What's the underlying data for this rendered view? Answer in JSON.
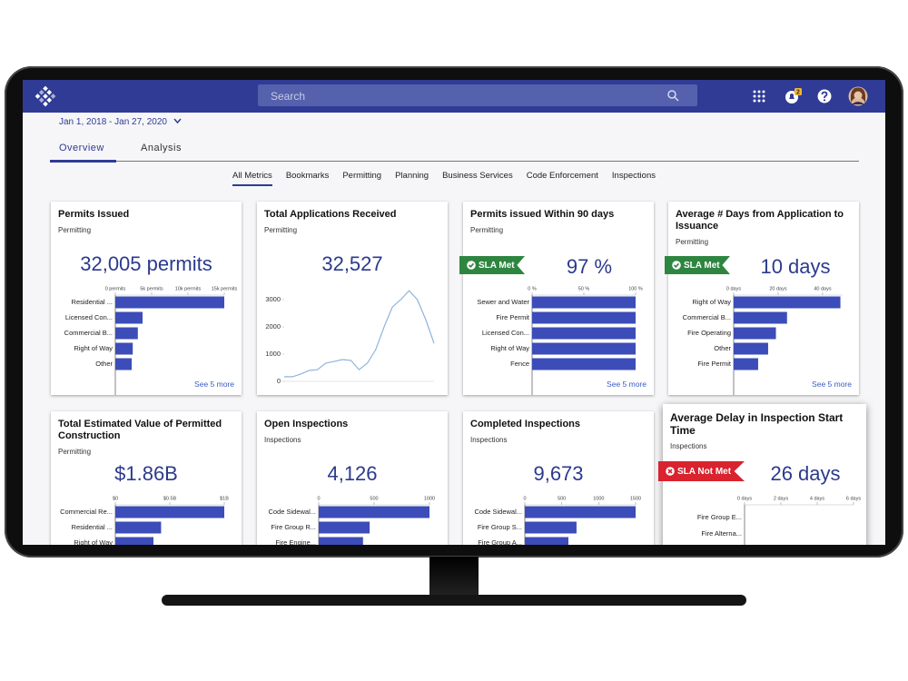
{
  "header": {
    "search_placeholder": "Search",
    "notification_count": "2"
  },
  "date_range": "Jan 1, 2018 - Jan 27, 2020",
  "tabs": [
    "Overview",
    "Analysis"
  ],
  "subtabs": [
    "All Metrics",
    "Bookmarks",
    "Permitting",
    "Planning",
    "Business Services",
    "Code Enforcement",
    "Inspections"
  ],
  "chart_data": [
    {
      "type": "barh",
      "title": "Permits Issued",
      "subtitle": "Permitting",
      "headline": "32,005 permits",
      "categories": [
        "Residential ...",
        "Licensed Con...",
        "Commercial B...",
        "Right of Way",
        "Other"
      ],
      "values": [
        15000,
        3750,
        3100,
        2400,
        2250
      ],
      "xlim": [
        0,
        15000
      ],
      "xticks": [
        {
          "value": 0,
          "label": "0 permits"
        },
        {
          "value": 5000,
          "label": "5k permits"
        },
        {
          "value": 10000,
          "label": "10k permits"
        },
        {
          "value": 15000,
          "label": "15k permits"
        }
      ],
      "color": "#3c4cb8",
      "link": "See 5 more"
    },
    {
      "type": "line",
      "title": "Total Applications Received",
      "subtitle": "Permitting",
      "headline": "32,527",
      "categories": [
        null,
        null,
        null,
        null,
        null,
        null,
        null,
        null,
        null,
        null,
        null,
        null,
        null,
        null,
        null,
        null,
        null,
        null,
        null
      ],
      "values": [
        170,
        170,
        270,
        400,
        430,
        670,
        730,
        800,
        770,
        430,
        670,
        1170,
        2000,
        2730,
        3000,
        3330,
        3000,
        2270,
        1400
      ],
      "ylim": [
        0,
        3400
      ],
      "yticks": [
        0,
        1000,
        2000,
        3000
      ],
      "color": "#8fb4da"
    },
    {
      "type": "barh",
      "title": "Permits issued Within 90 days",
      "subtitle": "Permitting",
      "headline": "97 %",
      "badge": "SLA Met",
      "badge_color": "#2e8540",
      "categories": [
        "Sewer and Water",
        "Fire Permit",
        "Licensed Con...",
        "Right of Way",
        "Fence"
      ],
      "values": [
        100,
        100,
        100,
        100,
        100
      ],
      "xlim": [
        0,
        100
      ],
      "xticks": [
        {
          "value": 0,
          "label": "0 %"
        },
        {
          "value": 50,
          "label": "50 %"
        },
        {
          "value": 100,
          "label": "100 %"
        }
      ],
      "color": "#3c4cb8",
      "link": "See 5 more"
    },
    {
      "type": "barh",
      "title": "Average # Days from Application to Issuance",
      "subtitle": "Permitting",
      "headline": "10 days",
      "badge": "SLA Met",
      "badge_color": "#2e8540",
      "categories": [
        "Right of Way",
        "Commercial B...",
        "Fire Operating",
        "Other",
        "Fire Permit"
      ],
      "values": [
        48,
        24,
        19,
        15.5,
        11
      ],
      "xlim": [
        0,
        49
      ],
      "xticks": [
        {
          "value": 0,
          "label": "0 days"
        },
        {
          "value": 20,
          "label": "20 days"
        },
        {
          "value": 40,
          "label": "40 days"
        }
      ],
      "color": "#3c4cb8",
      "link": "See 5 more"
    },
    {
      "type": "barh",
      "title": "Total Estimated Value of Permitted Construction",
      "subtitle": "Permitting",
      "headline": "$1.86B",
      "categories": [
        "Commercial Re...",
        "Residential ...",
        "Right of Way"
      ],
      "values": [
        1,
        0.42,
        0.35
      ],
      "xlim": [
        0,
        1
      ],
      "xticks": [
        {
          "value": 0,
          "label": "$0"
        },
        {
          "value": 0.5,
          "label": "$0.5B"
        },
        {
          "value": 1,
          "label": "$1B"
        }
      ],
      "color": "#3c4cb8"
    },
    {
      "type": "barh",
      "title": "Open Inspections",
      "subtitle": "Inspections",
      "headline": "4,126",
      "categories": [
        "Code Sidewal...",
        "Fire Group R...",
        "Fire Engine..."
      ],
      "values": [
        1000,
        460,
        400
      ],
      "xlim": [
        0,
        1000
      ],
      "xticks": [
        0,
        500,
        1000
      ],
      "color": "#3c4cb8"
    },
    {
      "type": "barh",
      "title": "Completed Inspections",
      "subtitle": "Inspections",
      "headline": "9,673",
      "categories": [
        "Code Sidewal...",
        "Fire Group S...",
        "Fire Group A..."
      ],
      "values": [
        1500,
        700,
        590
      ],
      "xlim": [
        0,
        1500
      ],
      "xticks": [
        0,
        500,
        1000,
        1500
      ],
      "color": "#3c4cb8"
    },
    {
      "type": "barh",
      "title": "Average Delay in Inspection Start Time",
      "subtitle": "Inspections",
      "headline": "26 days",
      "badge": "SLA Not Met",
      "badge_color": "#d9232e",
      "categories": [
        "Fire Group E...",
        "Fire Alterna..."
      ],
      "values": [
        0,
        0
      ],
      "xlim": [
        0,
        6
      ],
      "xticks": [
        {
          "value": 0,
          "label": "0 days"
        },
        {
          "value": 2,
          "label": "2 days"
        },
        {
          "value": 4,
          "label": "4 days"
        },
        {
          "value": 6,
          "label": "6 days"
        }
      ],
      "color": "#3c4cb8"
    }
  ]
}
